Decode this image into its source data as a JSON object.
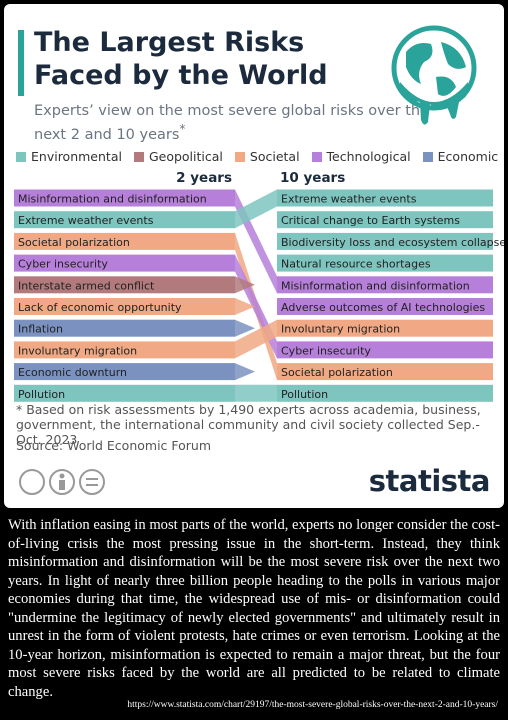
{
  "header": {
    "title": "The Largest Risks Faced by the World",
    "subtitle": "Experts’ view on the most severe global risks over the next 2 and 10 years",
    "subtitle_mark": "*"
  },
  "legend": [
    {
      "name": "Environmental",
      "color": "#7ec4bf"
    },
    {
      "name": "Geopolitical",
      "color": "#b27a7c"
    },
    {
      "name": "Societal",
      "color": "#f0a984"
    },
    {
      "name": "Technological",
      "color": "#b67fd9"
    },
    {
      "name": "Economic",
      "color": "#7b92c1"
    }
  ],
  "columns": [
    {
      "heading": "2 years",
      "items": [
        {
          "label": "Misinformation and disinformation",
          "category": 3
        },
        {
          "label": "Extreme weather events",
          "category": 0
        },
        {
          "label": "Societal polarization",
          "category": 2
        },
        {
          "label": "Cyber insecurity",
          "category": 3
        },
        {
          "label": "Interstate armed conflict",
          "category": 1
        },
        {
          "label": "Lack of economic opportunity",
          "category": 2
        },
        {
          "label": "Inflation",
          "category": 4
        },
        {
          "label": "Involuntary migration",
          "category": 2
        },
        {
          "label": "Economic downturn",
          "category": 4
        },
        {
          "label": "Pollution",
          "category": 0
        }
      ]
    },
    {
      "heading": "10 years",
      "items": [
        {
          "label": "Extreme weather events",
          "category": 0
        },
        {
          "label": "Critical change to Earth systems",
          "category": 0
        },
        {
          "label": "Biodiversity loss and ecosystem collapse",
          "category": 0
        },
        {
          "label": "Natural resource shortages",
          "category": 0
        },
        {
          "label": "Misinformation and disinformation",
          "category": 3
        },
        {
          "label": "Adverse outcomes of AI technologies",
          "category": 3
        },
        {
          "label": "Involuntary migration",
          "category": 2
        },
        {
          "label": "Cyber insecurity",
          "category": 3
        },
        {
          "label": "Societal polarization",
          "category": 2
        },
        {
          "label": "Pollution",
          "category": 0
        }
      ]
    }
  ],
  "footnote": "* Based on risk assessments by 1,490 experts across academia, business, government, the international community and civil society collected Sep.-Oct. 2023",
  "source": "Source: World Economic Forum",
  "logo": "statista",
  "caption": "With inflation easing in most parts of the world, experts no longer consider the cost-of-living crisis the most pressing issue in the short-term. Instead, they think misinformation and disinformation will be the most severe risk over the next two years. In light of nearly three billion people heading to the polls in various major economies during that time, the widespread use of mis- or disinformation could \"undermine the legitimacy of newly elected governments\" and ultimately result in unrest in the form of violent protests, hate crimes or even terrorism. Looking at the 10-year horizon, misinformation is expected to remain a major threat, but the four most severe risks faced by the world are all predicted to be related to climate change.",
  "url": "https://www.statista.com/chart/29197/the-most-severe-global-risks-over-the-next-2-and-10-years/"
}
